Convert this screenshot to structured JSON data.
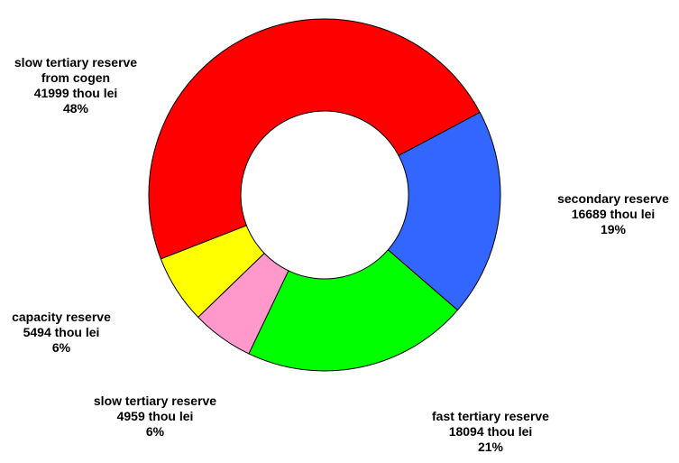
{
  "chart_data": {
    "type": "donut",
    "categories": [
      "secondary reserve",
      "fast tertiary reserve",
      "slow tertiary reserve",
      "capacity reserve",
      "slow tertiary reserve from cogen"
    ],
    "values": [
      16689,
      18094,
      4959,
      5494,
      41999
    ],
    "value_labels": [
      "16689 thou lei",
      "18094 thou lei",
      "4959 thou lei",
      "5494 thou lei",
      "41999 thou lei"
    ],
    "percent_labels": [
      "19%",
      "21%",
      "6%",
      "6%",
      "48%"
    ],
    "colors": [
      "#3366ff",
      "#00ff00",
      "#ff99cc",
      "#ffff00",
      "#ff0000"
    ]
  }
}
